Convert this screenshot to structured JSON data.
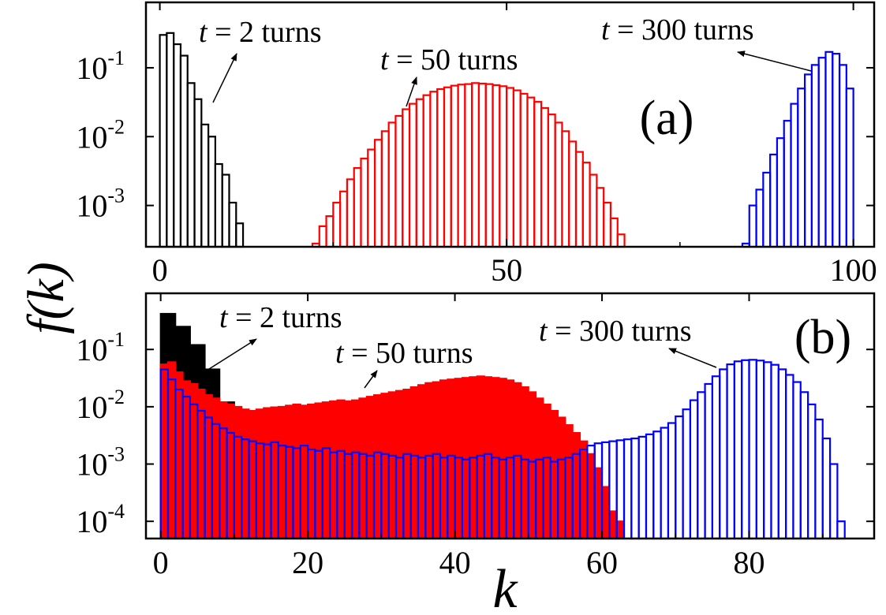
{
  "chart_data": [
    {
      "type": "bar",
      "panel_label": "(a)",
      "ylabel": "f(k)",
      "xlim": [
        -2,
        103
      ],
      "ylim_log10": [
        -3.6,
        -0.05
      ],
      "y_scale": "log",
      "x_ticks": [
        0,
        50,
        100
      ],
      "y_ticks": [
        {
          "base": "10",
          "exp": "-3"
        },
        {
          "base": "10",
          "exp": "-2"
        },
        {
          "base": "10",
          "exp": "-1"
        }
      ],
      "annotations": [
        {
          "var": "t",
          "rest": " = 2 turns"
        },
        {
          "var": "t",
          "rest": " = 50 turns"
        },
        {
          "var": "t",
          "rest": " = 300 turns"
        }
      ],
      "series": [
        {
          "color": "#000000",
          "bar_width": 1,
          "filled": false,
          "points": [
            [
              0,
              0.3
            ],
            [
              1,
              0.32
            ],
            [
              2,
              0.22
            ],
            [
              3,
              0.15
            ],
            [
              4,
              0.06
            ],
            [
              5,
              0.035
            ],
            [
              6,
              0.015
            ],
            [
              7,
              0.01
            ],
            [
              8,
              0.004
            ],
            [
              9,
              0.0028
            ],
            [
              10,
              0.0011
            ],
            [
              11,
              0.00055
            ]
          ]
        },
        {
          "color": "#ff0000",
          "bar_width": 1,
          "filled": false,
          "points": [
            [
              22,
              0.00028
            ],
            [
              23,
              0.0005
            ],
            [
              24,
              0.0007
            ],
            [
              25,
              0.0011
            ],
            [
              26,
              0.0016
            ],
            [
              27,
              0.0024
            ],
            [
              28,
              0.0035
            ],
            [
              29,
              0.0048
            ],
            [
              30,
              0.0065
            ],
            [
              31,
              0.009
            ],
            [
              32,
              0.012
            ],
            [
              33,
              0.016
            ],
            [
              34,
              0.02
            ],
            [
              35,
              0.025
            ],
            [
              36,
              0.03
            ],
            [
              37,
              0.035
            ],
            [
              38,
              0.04
            ],
            [
              39,
              0.045
            ],
            [
              40,
              0.049
            ],
            [
              41,
              0.052
            ],
            [
              42,
              0.055
            ],
            [
              43,
              0.057
            ],
            [
              44,
              0.058
            ],
            [
              45,
              0.06
            ],
            [
              46,
              0.059
            ],
            [
              47,
              0.058
            ],
            [
              48,
              0.056
            ],
            [
              49,
              0.054
            ],
            [
              50,
              0.051
            ],
            [
              51,
              0.047
            ],
            [
              52,
              0.042
            ],
            [
              53,
              0.037
            ],
            [
              54,
              0.032
            ],
            [
              55,
              0.026
            ],
            [
              56,
              0.021
            ],
            [
              57,
              0.016
            ],
            [
              58,
              0.012
            ],
            [
              59,
              0.0085
            ],
            [
              60,
              0.006
            ],
            [
              61,
              0.0042
            ],
            [
              62,
              0.0028
            ],
            [
              63,
              0.0018
            ],
            [
              64,
              0.0011
            ],
            [
              65,
              0.00065
            ],
            [
              66,
              0.00038
            ]
          ]
        },
        {
          "color": "#0000ff",
          "bar_width": 1,
          "filled": false,
          "points": [
            [
              84,
              0.00028
            ],
            [
              85,
              0.001
            ],
            [
              86,
              0.0017
            ],
            [
              87,
              0.003
            ],
            [
              88,
              0.0055
            ],
            [
              89,
              0.0095
            ],
            [
              90,
              0.017
            ],
            [
              91,
              0.03
            ],
            [
              92,
              0.05
            ],
            [
              93,
              0.08
            ],
            [
              94,
              0.11
            ],
            [
              95,
              0.14
            ],
            [
              96,
              0.17
            ],
            [
              97,
              0.16
            ],
            [
              98,
              0.11
            ],
            [
              99,
              0.05
            ]
          ]
        }
      ]
    },
    {
      "type": "bar",
      "panel_label": "(b)",
      "xlabel": "k",
      "xlim": [
        -2,
        97
      ],
      "ylim_log10": [
        -4.3,
        -0.02
      ],
      "y_scale": "log",
      "x_ticks": [
        0,
        20,
        40,
        60,
        80
      ],
      "y_ticks": [
        {
          "base": "10",
          "exp": "-4"
        },
        {
          "base": "10",
          "exp": "-3"
        },
        {
          "base": "10",
          "exp": "-2"
        },
        {
          "base": "10",
          "exp": "-1"
        }
      ],
      "annotations": [
        {
          "var": "t",
          "rest": " = 2 turns"
        },
        {
          "var": "t",
          "rest": " = 50 turns"
        },
        {
          "var": "t",
          "rest": " = 300 turns"
        }
      ],
      "series": [
        {
          "color": "#000000",
          "bar_width": 2,
          "filled": true,
          "points": [
            [
              0,
              0.42
            ],
            [
              2,
              0.25
            ],
            [
              4,
              0.12
            ],
            [
              6,
              0.045
            ],
            [
              8,
              0.012
            ],
            [
              10,
              0.0028
            ],
            [
              12,
              0.0002
            ]
          ]
        },
        {
          "color": "#ff0000",
          "bar_width": 1,
          "filled": true,
          "points": [
            [
              0,
              0.055
            ],
            [
              1,
              0.06
            ],
            [
              2,
              0.04
            ],
            [
              3,
              0.028
            ],
            [
              4,
              0.025
            ],
            [
              5,
              0.02
            ],
            [
              6,
              0.016
            ],
            [
              7,
              0.014
            ],
            [
              8,
              0.012
            ],
            [
              9,
              0.011
            ],
            [
              10,
              0.01
            ],
            [
              11,
              0.009
            ],
            [
              12,
              0.0085
            ],
            [
              13,
              0.009
            ],
            [
              14,
              0.0095
            ],
            [
              15,
              0.0098
            ],
            [
              16,
              0.01
            ],
            [
              17,
              0.0105
            ],
            [
              18,
              0.011
            ],
            [
              19,
              0.0105
            ],
            [
              20,
              0.011
            ],
            [
              21,
              0.0115
            ],
            [
              22,
              0.012
            ],
            [
              23,
              0.0125
            ],
            [
              24,
              0.013
            ],
            [
              25,
              0.0125
            ],
            [
              26,
              0.013
            ],
            [
              27,
              0.014
            ],
            [
              28,
              0.015
            ],
            [
              29,
              0.016
            ],
            [
              30,
              0.017
            ],
            [
              31,
              0.018
            ],
            [
              32,
              0.019
            ],
            [
              33,
              0.02
            ],
            [
              34,
              0.022
            ],
            [
              35,
              0.024
            ],
            [
              36,
              0.026
            ],
            [
              37,
              0.027
            ],
            [
              38,
              0.029
            ],
            [
              39,
              0.03
            ],
            [
              40,
              0.031
            ],
            [
              41,
              0.032
            ],
            [
              42,
              0.033
            ],
            [
              43,
              0.034
            ],
            [
              44,
              0.033
            ],
            [
              45,
              0.032
            ],
            [
              46,
              0.031
            ],
            [
              47,
              0.029
            ],
            [
              48,
              0.026
            ],
            [
              49,
              0.022
            ],
            [
              50,
              0.018
            ],
            [
              51,
              0.014
            ],
            [
              52,
              0.011
            ],
            [
              53,
              0.0085
            ],
            [
              54,
              0.0065
            ],
            [
              55,
              0.0048
            ],
            [
              56,
              0.0035
            ],
            [
              57,
              0.0025
            ],
            [
              58,
              0.0015
            ],
            [
              59,
              0.00085
            ],
            [
              60,
              0.0004
            ],
            [
              61,
              0.00015
            ],
            [
              62,
              0.0001
            ]
          ]
        },
        {
          "color": "#0000ff",
          "bar_width": 1,
          "filled": false,
          "points": [
            [
              0,
              0.045
            ],
            [
              1,
              0.03
            ],
            [
              2,
              0.02
            ],
            [
              3,
              0.015
            ],
            [
              4,
              0.011
            ],
            [
              5,
              0.0085
            ],
            [
              6,
              0.0065
            ],
            [
              7,
              0.005
            ],
            [
              8,
              0.0042
            ],
            [
              9,
              0.0035
            ],
            [
              10,
              0.003
            ],
            [
              11,
              0.0027
            ],
            [
              12,
              0.0025
            ],
            [
              13,
              0.0023
            ],
            [
              14,
              0.0022
            ],
            [
              15,
              0.0024
            ],
            [
              16,
              0.0021
            ],
            [
              17,
              0.002
            ],
            [
              18,
              0.0019
            ],
            [
              19,
              0.0021
            ],
            [
              20,
              0.0018
            ],
            [
              21,
              0.0017
            ],
            [
              22,
              0.0019
            ],
            [
              23,
              0.0016
            ],
            [
              24,
              0.0017
            ],
            [
              25,
              0.0015
            ],
            [
              26,
              0.0016
            ],
            [
              27,
              0.0015
            ],
            [
              28,
              0.0014
            ],
            [
              29,
              0.0016
            ],
            [
              30,
              0.0015
            ],
            [
              31,
              0.0014
            ],
            [
              32,
              0.0013
            ],
            [
              33,
              0.0015
            ],
            [
              34,
              0.0014
            ],
            [
              35,
              0.0013
            ],
            [
              36,
              0.0014
            ],
            [
              37,
              0.0015
            ],
            [
              38,
              0.0013
            ],
            [
              39,
              0.0014
            ],
            [
              40,
              0.0013
            ],
            [
              41,
              0.0012
            ],
            [
              42,
              0.0013
            ],
            [
              43,
              0.0014
            ],
            [
              44,
              0.0015
            ],
            [
              45,
              0.0013
            ],
            [
              46,
              0.0012
            ],
            [
              47,
              0.0013
            ],
            [
              48,
              0.0014
            ],
            [
              49,
              0.0012
            ],
            [
              50,
              0.0011
            ],
            [
              51,
              0.0012
            ],
            [
              52,
              0.0013
            ],
            [
              53,
              0.0011
            ],
            [
              54,
              0.0012
            ],
            [
              55,
              0.0013
            ],
            [
              56,
              0.0015
            ],
            [
              57,
              0.0018
            ],
            [
              58,
              0.0021
            ],
            [
              59,
              0.0023
            ],
            [
              60,
              0.0024
            ],
            [
              61,
              0.0025
            ],
            [
              62,
              0.0026
            ],
            [
              63,
              0.0027
            ],
            [
              64,
              0.0028
            ],
            [
              65,
              0.003
            ],
            [
              66,
              0.0033
            ],
            [
              67,
              0.0037
            ],
            [
              68,
              0.0043
            ],
            [
              69,
              0.0052
            ],
            [
              70,
              0.0068
            ],
            [
              71,
              0.009
            ],
            [
              72,
              0.013
            ],
            [
              73,
              0.018
            ],
            [
              74,
              0.025
            ],
            [
              75,
              0.034
            ],
            [
              76,
              0.045
            ],
            [
              77,
              0.055
            ],
            [
              78,
              0.062
            ],
            [
              79,
              0.065
            ],
            [
              80,
              0.066
            ],
            [
              81,
              0.064
            ],
            [
              82,
              0.06
            ],
            [
              83,
              0.054
            ],
            [
              84,
              0.045
            ],
            [
              85,
              0.036
            ],
            [
              86,
              0.027
            ],
            [
              87,
              0.018
            ],
            [
              88,
              0.011
            ],
            [
              89,
              0.006
            ],
            [
              90,
              0.0028
            ],
            [
              91,
              0.001
            ],
            [
              92,
              0.0001
            ]
          ]
        }
      ]
    }
  ]
}
